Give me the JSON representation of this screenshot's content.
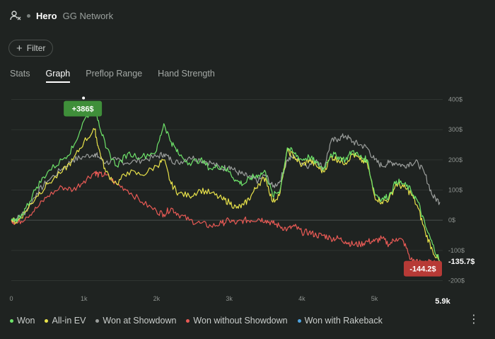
{
  "header": {
    "name": "Hero",
    "network": "GG Network"
  },
  "filter": {
    "label": "Filter"
  },
  "tabs": [
    {
      "label": "Stats",
      "active": false
    },
    {
      "label": "Graph",
      "active": true
    },
    {
      "label": "Preflop Range",
      "active": false
    },
    {
      "label": "Hand Strength",
      "active": false
    }
  ],
  "legend": [
    {
      "label": "Won",
      "color": "#6ee36a"
    },
    {
      "label": "All-in EV",
      "color": "#e8e24a"
    },
    {
      "label": "Won at Showdown",
      "color": "#9a9d9b"
    },
    {
      "label": "Won without Showdown",
      "color": "#e85a55"
    },
    {
      "label": "Won with Rakeback",
      "color": "#4ea3e0"
    }
  ],
  "chart_data": {
    "type": "line",
    "x_ticks": [
      "0",
      "1k",
      "2k",
      "3k",
      "4k",
      "5k"
    ],
    "x_end_label": "5.9k",
    "xlim": [
      0,
      5900
    ],
    "y_ticks": [
      "400$",
      "300$",
      "200$",
      "100$",
      "0$",
      "-100$",
      "-200$"
    ],
    "ylim": [
      -220,
      420
    ],
    "peak_label": "+386$",
    "peak_x": 1150,
    "peak_value": 386,
    "end_label": "-135.7$",
    "end_value": -135.7,
    "low_label": "-144.2$",
    "low_value": -144.2,
    "series": [
      {
        "name": "Won",
        "color": "#6ee36a",
        "x": [
          0,
          80,
          200,
          350,
          500,
          700,
          850,
          1000,
          1150,
          1200,
          1300,
          1450,
          1600,
          1800,
          2000,
          2100,
          2200,
          2300,
          2450,
          2600,
          2750,
          2900,
          3000,
          3100,
          3200,
          3300,
          3400,
          3500,
          3600,
          3700,
          3800,
          3900,
          4000,
          4100,
          4200,
          4300,
          4400,
          4500,
          4600,
          4700,
          4800,
          4900,
          5000,
          5100,
          5200,
          5300,
          5400,
          5500,
          5600,
          5700,
          5800,
          5900
        ],
        "y": [
          0,
          -5,
          40,
          110,
          160,
          200,
          240,
          330,
          380,
          330,
          240,
          180,
          220,
          210,
          230,
          320,
          260,
          220,
          190,
          200,
          170,
          180,
          160,
          130,
          120,
          140,
          150,
          160,
          80,
          100,
          240,
          220,
          200,
          210,
          190,
          170,
          220,
          210,
          200,
          230,
          210,
          200,
          90,
          70,
          80,
          130,
          120,
          100,
          60,
          -20,
          -80,
          -135.7
        ]
      },
      {
        "name": "All-in EV",
        "color": "#e8e24a",
        "x": [
          0,
          80,
          200,
          350,
          500,
          700,
          850,
          1000,
          1150,
          1200,
          1300,
          1450,
          1600,
          1800,
          2000,
          2100,
          2200,
          2300,
          2450,
          2600,
          2750,
          2900,
          3000,
          3100,
          3200,
          3300,
          3400,
          3500,
          3600,
          3700,
          3800,
          3900,
          4000,
          4100,
          4200,
          4300,
          4400,
          4500,
          4600,
          4700,
          4800,
          4900,
          5000,
          5100,
          5200,
          5300,
          5400,
          5500,
          5600,
          5700,
          5800,
          5900
        ],
        "y": [
          0,
          -5,
          30,
          80,
          120,
          160,
          200,
          260,
          300,
          240,
          160,
          120,
          160,
          150,
          180,
          200,
          120,
          90,
          80,
          100,
          90,
          70,
          60,
          40,
          50,
          80,
          120,
          140,
          60,
          90,
          230,
          210,
          180,
          200,
          180,
          160,
          210,
          200,
          190,
          220,
          200,
          190,
          80,
          60,
          70,
          120,
          110,
          90,
          40,
          -40,
          -100,
          -140
        ]
      },
      {
        "name": "Won at Showdown",
        "color": "#9a9d9b",
        "x": [
          0,
          80,
          200,
          350,
          500,
          700,
          850,
          1000,
          1150,
          1200,
          1300,
          1450,
          1600,
          1800,
          2000,
          2100,
          2200,
          2300,
          2450,
          2600,
          2750,
          2900,
          3000,
          3100,
          3200,
          3300,
          3400,
          3500,
          3600,
          3700,
          3800,
          3900,
          4000,
          4100,
          4200,
          4300,
          4400,
          4500,
          4600,
          4700,
          4800,
          4900,
          5000,
          5100,
          5200,
          5300,
          5400,
          5500,
          5600,
          5700,
          5800,
          5900
        ],
        "y": [
          0,
          5,
          30,
          90,
          130,
          170,
          200,
          210,
          220,
          210,
          190,
          200,
          190,
          200,
          210,
          220,
          200,
          190,
          210,
          200,
          190,
          170,
          180,
          160,
          150,
          140,
          130,
          150,
          110,
          130,
          200,
          210,
          190,
          180,
          200,
          170,
          260,
          270,
          280,
          260,
          250,
          240,
          200,
          180,
          190,
          190,
          180,
          190,
          190,
          150,
          80,
          60
        ]
      },
      {
        "name": "Won without Showdown",
        "color": "#e85a55",
        "x": [
          0,
          80,
          200,
          350,
          500,
          700,
          850,
          1000,
          1150,
          1200,
          1300,
          1450,
          1600,
          1800,
          2000,
          2100,
          2200,
          2300,
          2450,
          2600,
          2750,
          2900,
          3000,
          3100,
          3200,
          3300,
          3400,
          3500,
          3600,
          3700,
          3800,
          3900,
          4000,
          4100,
          4200,
          4300,
          4400,
          4500,
          4600,
          4700,
          4800,
          4900,
          5000,
          5100,
          5200,
          5300,
          5400,
          5500,
          5600,
          5700,
          5800,
          5900
        ],
        "y": [
          0,
          -10,
          10,
          40,
          80,
          110,
          100,
          130,
          160,
          150,
          150,
          120,
          100,
          60,
          30,
          20,
          40,
          20,
          0,
          -10,
          -20,
          -10,
          0,
          -10,
          0,
          0,
          5,
          0,
          -10,
          -20,
          -30,
          -20,
          -40,
          -40,
          -50,
          -50,
          -60,
          -60,
          -70,
          -80,
          -80,
          -70,
          -70,
          -60,
          -80,
          -60,
          -70,
          -130,
          -140,
          -135,
          -144.2,
          -144.2
        ]
      }
    ]
  }
}
